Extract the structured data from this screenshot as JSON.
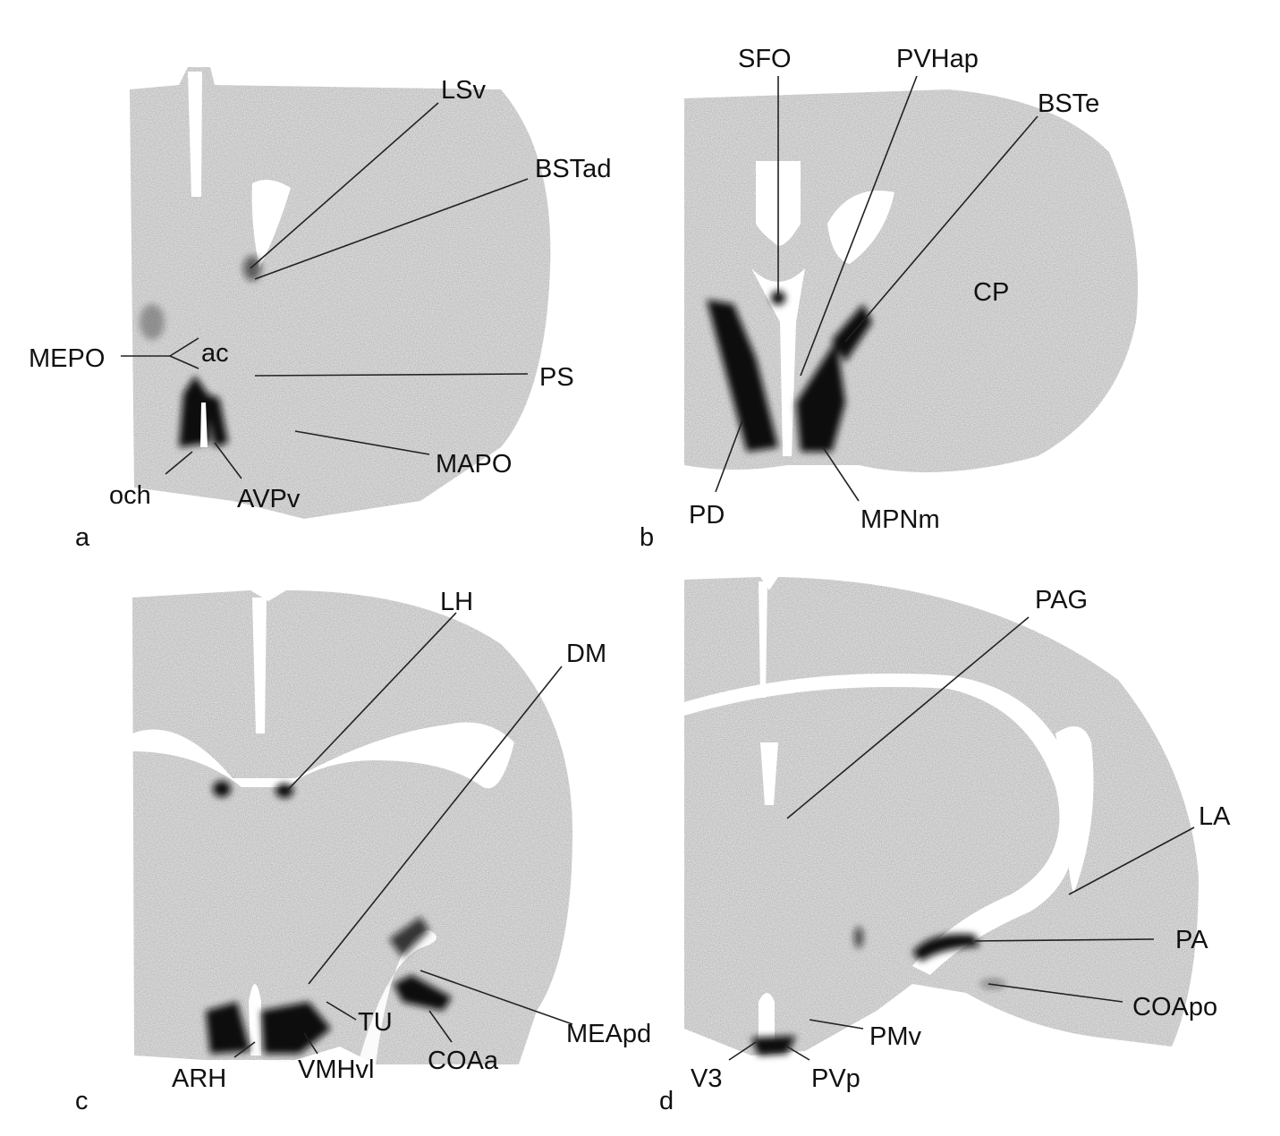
{
  "panels": [
    {
      "letter": "a",
      "labels": {
        "LSv": "LSv",
        "BSTad": "BSTad",
        "MEPO": "MEPO",
        "ac": "ac",
        "PS": "PS",
        "MAPO": "MAPO",
        "och": "och",
        "AVPv": "AVPv"
      }
    },
    {
      "letter": "b",
      "labels": {
        "SFO": "SFO",
        "PVHap": "PVHap",
        "BSTe": "BSTe",
        "CP": "CP",
        "PD": "PD",
        "MPNm": "MPNm"
      }
    },
    {
      "letter": "c",
      "labels": {
        "LH": "LH",
        "DM": "DM",
        "TU": "TU",
        "ARH": "ARH",
        "VMHvl": "VMHvl",
        "COAa": "COAa",
        "MEApd": "MEApd"
      }
    },
    {
      "letter": "d",
      "labels": {
        "PAG": "PAG",
        "LA": "LA",
        "PA": "PA",
        "COApo": "COApo",
        "PMv": "PMv",
        "V3": "V3",
        "PVp": "PVp"
      }
    }
  ]
}
